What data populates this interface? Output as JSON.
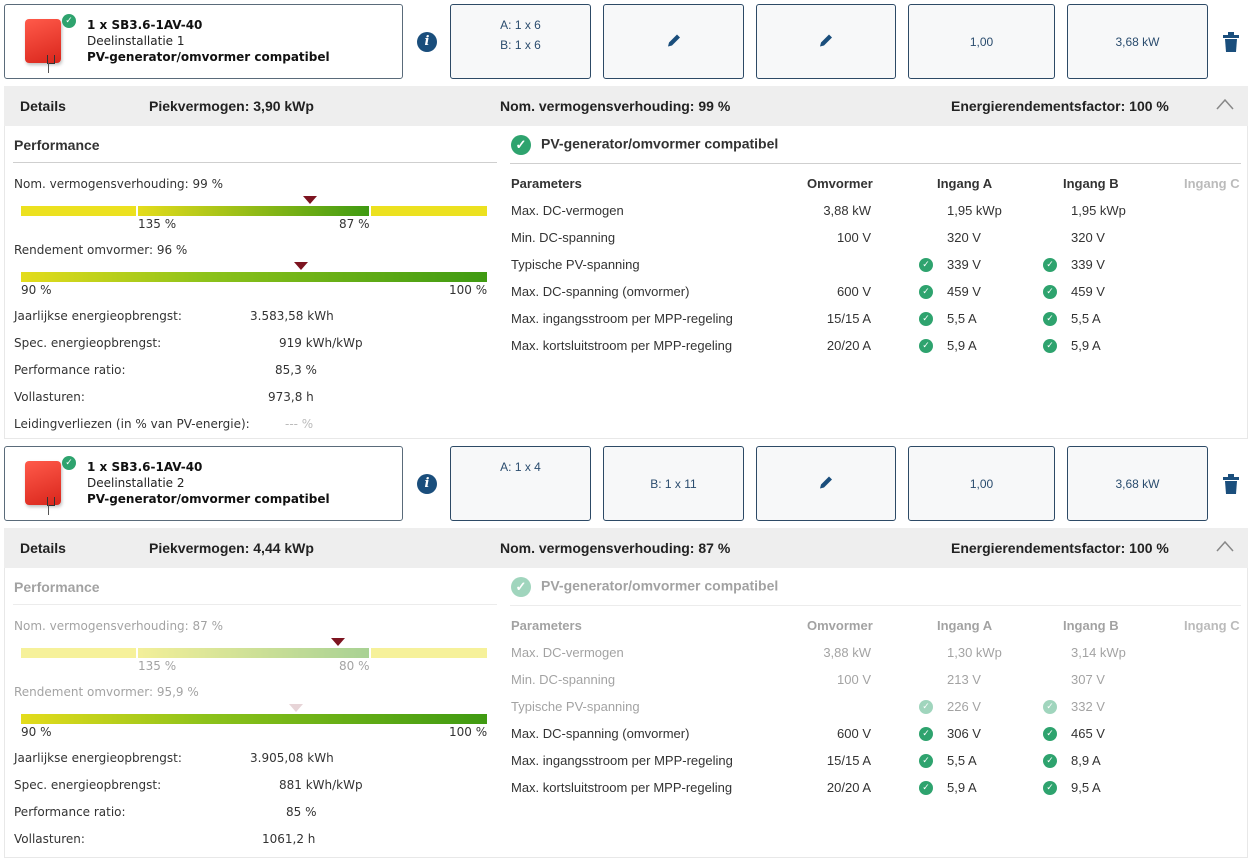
{
  "colors": {
    "accent_blue": "#1a4e7c",
    "ok_green": "#2ea36e",
    "marker_red": "#7d1420",
    "bar_yellow": "#ece11f",
    "bar_green": "#3f9a12"
  },
  "sections": [
    {
      "inverter": {
        "title": "1 x SB3.6-1AV-40",
        "subtitle": "Deelinstallatie 1",
        "status": "PV-generator/omvormer compatibel",
        "image_icon": "inverter-image",
        "status_icon": "check-circle-icon"
      },
      "strings": {
        "line_a": "A: 1 x 6",
        "line_b": "B: 1 x 6"
      },
      "edit_icon_1": "pencil-icon",
      "edit_icon_2": "pencil-icon",
      "factor": "1,00",
      "power": "3,68 kW",
      "details": {
        "label": "Details",
        "peak": "Piekvermogen: 3,90 kWp",
        "ratio": "Nom. vermogensverhouding: 99 %",
        "energy_factor": "Energierendementsfactor: 100 %"
      },
      "performance": {
        "title": "Performance",
        "ratio_label": "Nom. vermogensverhouding: 99 %",
        "ratio_ticks": {
          "left": "135 %",
          "right": "87 %"
        },
        "ratio_marker_percent": 62,
        "efficiency_label": "Rendement omvormer: 96 %",
        "efficiency_ticks": {
          "left": "90 %",
          "right": "100 %"
        },
        "efficiency_marker_value": 96,
        "rows": [
          {
            "label": "Jaarlijkse energieopbrengst:",
            "value": "3.583,58 kWh"
          },
          {
            "label": "Spec. energieopbrengst:",
            "value": "919 kWh/kWp"
          },
          {
            "label": "Performance ratio:",
            "value": "85,3 %"
          },
          {
            "label": "Vollasturen:",
            "value": "973,8 h"
          },
          {
            "label": "Leidingverliezen (in % van PV-energie):",
            "value": "--- %"
          }
        ]
      },
      "compat": {
        "title": "PV-generator/omvormer compatibel",
        "headers": [
          "Parameters",
          "Omvormer",
          "Ingang A",
          "Ingang B",
          "Ingang C"
        ],
        "rows": [
          {
            "param": "Max. DC-vermogen",
            "omvormer": "3,88 kW",
            "a": "1,95 kWp",
            "b": "1,95 kWp",
            "check": false
          },
          {
            "param": "Min. DC-spanning",
            "omvormer": "100 V",
            "a": "320 V",
            "b": "320 V",
            "check": false
          },
          {
            "param": "Typische PV-spanning",
            "omvormer": "",
            "a": "339 V",
            "b": "339 V",
            "check": true
          },
          {
            "param": "Max. DC-spanning (omvormer)",
            "omvormer": "600 V",
            "a": "459 V",
            "b": "459 V",
            "check": true
          },
          {
            "param": "Max. ingangsstroom per MPP-regeling",
            "omvormer": "15/15 A",
            "a": "5,5 A",
            "b": "5,5 A",
            "check": true
          },
          {
            "param": "Max. kortsluitstroom per MPP-regeling",
            "omvormer": "20/20 A",
            "a": "5,9 A",
            "b": "5,9 A",
            "check": true
          }
        ]
      }
    },
    {
      "inverter": {
        "title": "1 x SB3.6-1AV-40",
        "subtitle": "Deelinstallatie 2",
        "status": "PV-generator/omvormer compatibel",
        "image_icon": "inverter-image",
        "status_icon": "check-circle-icon"
      },
      "strings": {
        "line_a": "A: 1 x 4",
        "line_b": "B: 1 x 11"
      },
      "edit_icon_2": "pencil-icon",
      "factor": "1,00",
      "power": "3,68 kW",
      "details": {
        "label": "Details",
        "peak": "Piekvermogen: 4,44 kWp",
        "ratio": "Nom. vermogensverhouding: 87 %",
        "energy_factor": "Energierendementsfactor: 100 %"
      },
      "performance": {
        "title": "Performance",
        "ratio_label": "Nom. vermogensverhouding: 87 %",
        "ratio_ticks": {
          "left": "135 %",
          "right": "80 %"
        },
        "ratio_marker_percent": 68,
        "efficiency_label": "Rendement omvormer: 95,9 %",
        "efficiency_ticks": {
          "left": "90 %",
          "right": "100 %"
        },
        "efficiency_marker_value": 95.9,
        "rows": [
          {
            "label": "Jaarlijkse energieopbrengst:",
            "value": "3.905,08 kWh"
          },
          {
            "label": "Spec. energieopbrengst:",
            "value": "881 kWh/kWp"
          },
          {
            "label": "Performance ratio:",
            "value": "85 %"
          },
          {
            "label": "Vollasturen:",
            "value": "1061,2 h"
          }
        ]
      },
      "compat": {
        "title": "PV-generator/omvormer compatibel",
        "headers": [
          "Parameters",
          "Omvormer",
          "Ingang A",
          "Ingang B",
          "Ingang C"
        ],
        "rows": [
          {
            "param": "Max. DC-vermogen",
            "omvormer": "3,88 kW",
            "a": "1,30 kWp",
            "b": "3,14 kWp",
            "check": false
          },
          {
            "param": "Min. DC-spanning",
            "omvormer": "100 V",
            "a": "213 V",
            "b": "307 V",
            "check": false
          },
          {
            "param": "Typische PV-spanning",
            "omvormer": "",
            "a": "226 V",
            "b": "332 V",
            "check": true
          },
          {
            "param": "Max. DC-spanning (omvormer)",
            "omvormer": "600 V",
            "a": "306 V",
            "b": "465 V",
            "check": true
          },
          {
            "param": "Max. ingangsstroom per MPP-regeling",
            "omvormer": "15/15 A",
            "a": "5,5 A",
            "b": "8,9 A",
            "check": true
          },
          {
            "param": "Max. kortsluitstroom per MPP-regeling",
            "omvormer": "20/20 A",
            "a": "5,9 A",
            "b": "9,5 A",
            "check": true
          }
        ]
      }
    }
  ]
}
